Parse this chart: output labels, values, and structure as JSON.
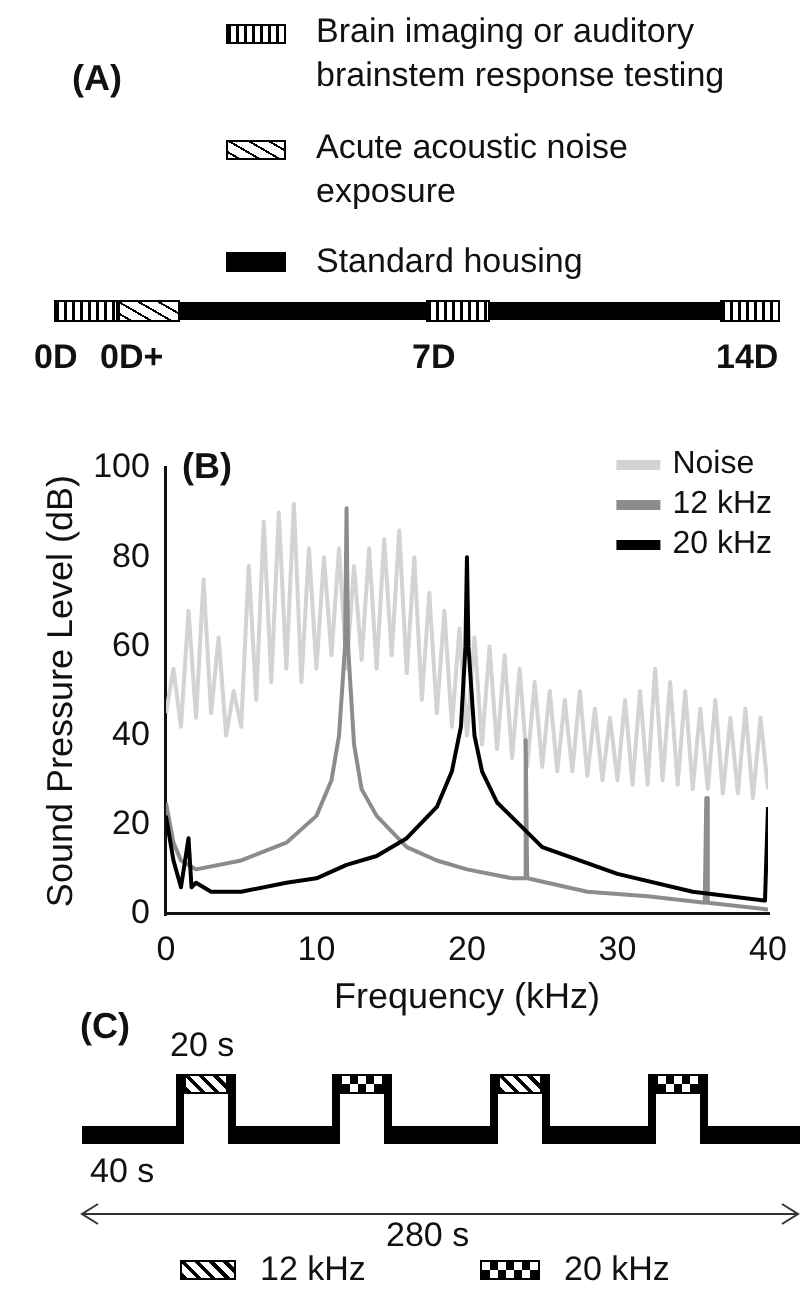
{
  "chart_data": [
    {
      "type": "other",
      "title": "(A)",
      "annotations": [
        "Brain imaging or auditory brainstem response testing",
        "Acute acoustic noise exposure",
        "Standard housing",
        "0D",
        "0D+",
        "7D",
        "14D"
      ]
    },
    {
      "type": "line",
      "title": "(B)",
      "xlabel": "Frequency (kHz)",
      "ylabel": "Sound Pressure Level (dB)",
      "xlim": [
        0,
        40
      ],
      "xticks": [
        0,
        10,
        20,
        30,
        40
      ],
      "ylim": [
        0,
        100
      ],
      "yticks": [
        0,
        20,
        40,
        60,
        80,
        100
      ],
      "grid": false,
      "legend": "top right",
      "marker": "none",
      "line_style": "solid",
      "series": [
        {
          "name": "Noise",
          "color": "#d3d3d3",
          "x": [
            0,
            0.5,
            1,
            1.5,
            2,
            2.5,
            3,
            3.5,
            4,
            4.5,
            5,
            5.5,
            6,
            6.5,
            7,
            7.5,
            8,
            8.5,
            9,
            9.5,
            10,
            10.5,
            11,
            11.5,
            12,
            12.5,
            13,
            13.5,
            14,
            14.5,
            15,
            15.5,
            16,
            16.5,
            17,
            17.5,
            18,
            18.5,
            19,
            19.5,
            20,
            20.5,
            21,
            21.5,
            22,
            22.5,
            23,
            23.5,
            24,
            24.5,
            25,
            25.5,
            26,
            26.5,
            27,
            27.5,
            28,
            28.5,
            29,
            29.5,
            30,
            30.5,
            31,
            31.5,
            32,
            32.5,
            33,
            33.5,
            34,
            34.5,
            35,
            35.5,
            36,
            36.5,
            37,
            37.5,
            38,
            38.5,
            39,
            39.5,
            40
          ],
          "values": [
            45,
            55,
            42,
            68,
            44,
            75,
            45,
            62,
            40,
            50,
            42,
            78,
            48,
            88,
            52,
            90,
            55,
            92,
            52,
            82,
            55,
            80,
            58,
            82,
            55,
            78,
            57,
            82,
            55,
            84,
            58,
            86,
            54,
            80,
            48,
            72,
            45,
            68,
            42,
            64,
            40,
            62,
            38,
            60,
            37,
            58,
            35,
            55,
            33,
            52,
            33,
            50,
            32,
            48,
            32,
            50,
            31,
            46,
            30,
            44,
            30,
            48,
            29,
            50,
            29,
            55,
            30,
            52,
            29,
            50,
            28,
            46,
            28,
            48,
            27,
            44,
            27,
            46,
            26,
            44,
            28
          ]
        },
        {
          "name": "12 kHz",
          "color": "#8c8c8c",
          "x": [
            0,
            0.5,
            1,
            2,
            5,
            8,
            10,
            11,
            11.5,
            11.9,
            12,
            12.1,
            12.5,
            13,
            14,
            16,
            18,
            20,
            23,
            23.8,
            23.9,
            24,
            28,
            32,
            35.8,
            35.9,
            36,
            40
          ],
          "values": [
            25,
            16,
            12,
            10,
            12,
            16,
            22,
            30,
            40,
            60,
            91,
            60,
            38,
            28,
            22,
            15,
            12,
            10,
            8,
            8,
            39,
            8,
            5,
            4,
            2.5,
            26,
            2.5,
            1
          ]
        },
        {
          "name": "20 kHz",
          "color": "#000000",
          "x": [
            0,
            0.5,
            1,
            1.5,
            1.7,
            2,
            3,
            5,
            8,
            10,
            12,
            14,
            16,
            18,
            19,
            19.6,
            19.9,
            20,
            20.1,
            20.5,
            21,
            22,
            25,
            30,
            35,
            39.8,
            40
          ],
          "values": [
            22,
            12,
            6,
            17,
            6,
            7,
            5,
            5,
            7,
            8,
            11,
            13,
            17,
            24,
            32,
            42,
            60,
            80,
            60,
            40,
            32,
            25,
            15,
            9,
            5,
            3,
            24
          ]
        }
      ]
    },
    {
      "type": "other",
      "title": "(C)",
      "annotations": [
        "20 s",
        "40 s",
        "280 s",
        "12 kHz",
        "20 kHz"
      ]
    }
  ]
}
